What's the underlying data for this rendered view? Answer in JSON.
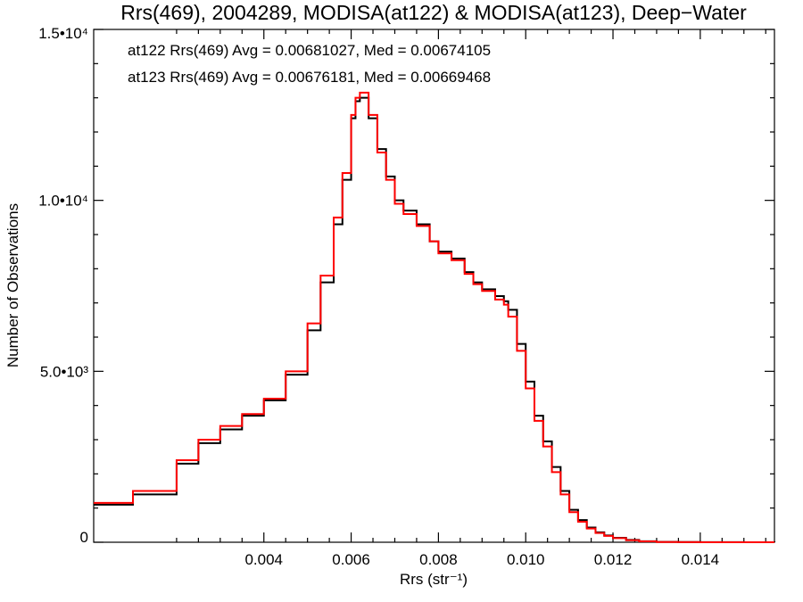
{
  "chart_data": {
    "type": "line",
    "subtype": "histogram-step",
    "title": "Rrs(469), 2004289, MODISA(at122) & MODISA(at123), Deep−Water",
    "xlabel": "Rrs (str⁻¹)",
    "ylabel": "Number of Observations",
    "xlim": [
      0.0001,
      0.0157
    ],
    "ylim": [
      0,
      15000
    ],
    "x_ticks": [
      {
        "value": 0.004,
        "label": "0.004"
      },
      {
        "value": 0.006,
        "label": "0.006"
      },
      {
        "value": 0.008,
        "label": "0.008"
      },
      {
        "value": 0.01,
        "label": "0.010"
      },
      {
        "value": 0.012,
        "label": "0.012"
      },
      {
        "value": 0.014,
        "label": "0.014"
      }
    ],
    "y_ticks": [
      {
        "value": 0,
        "label": "0"
      },
      {
        "value": 5000,
        "label": "5.0•10³"
      },
      {
        "value": 10000,
        "label": "1.0•10⁴"
      },
      {
        "value": 15000,
        "label": "1.5•10⁴"
      }
    ],
    "grid": false,
    "legend": "annotations top-left",
    "series": [
      {
        "name": "at122",
        "color": "#000000",
        "x": [
          0.0001,
          0.001,
          0.002,
          0.0025,
          0.003,
          0.0035,
          0.004,
          0.0045,
          0.005,
          0.0053,
          0.0056,
          0.0058,
          0.006,
          0.0061,
          0.0062,
          0.0064,
          0.0066,
          0.0068,
          0.007,
          0.0072,
          0.0075,
          0.0078,
          0.008,
          0.0083,
          0.0086,
          0.0088,
          0.009,
          0.0093,
          0.0095,
          0.0096,
          0.0098,
          0.01,
          0.0102,
          0.0104,
          0.0106,
          0.0108,
          0.011,
          0.0112,
          0.0114,
          0.0116,
          0.0118,
          0.012,
          0.0123,
          0.0126,
          0.013,
          0.0135,
          0.014,
          0.015,
          0.0157
        ],
        "y": [
          1100,
          1400,
          2300,
          2900,
          3300,
          3700,
          4150,
          4900,
          6200,
          7600,
          9300,
          10600,
          12400,
          12900,
          13000,
          12400,
          11500,
          10700,
          10000,
          9700,
          9300,
          8800,
          8500,
          8300,
          7900,
          7600,
          7400,
          7200,
          7050,
          6800,
          5800,
          4700,
          3700,
          2950,
          2200,
          1500,
          950,
          650,
          430,
          290,
          200,
          130,
          70,
          30,
          10,
          5,
          2,
          1,
          0
        ]
      },
      {
        "name": "at123",
        "color": "#ff0000",
        "x": [
          0.0001,
          0.001,
          0.002,
          0.0025,
          0.003,
          0.0035,
          0.004,
          0.0045,
          0.005,
          0.0053,
          0.0056,
          0.0058,
          0.006,
          0.0061,
          0.0062,
          0.0064,
          0.0066,
          0.0068,
          0.007,
          0.0072,
          0.0075,
          0.0078,
          0.008,
          0.0083,
          0.0086,
          0.0088,
          0.009,
          0.0093,
          0.0095,
          0.0096,
          0.0098,
          0.01,
          0.0102,
          0.0104,
          0.0106,
          0.0108,
          0.011,
          0.0112,
          0.0114,
          0.0116,
          0.0118,
          0.012,
          0.0123,
          0.0126,
          0.013,
          0.0135,
          0.014,
          0.015,
          0.0157
        ],
        "y": [
          1150,
          1500,
          2400,
          3000,
          3400,
          3750,
          4200,
          5000,
          6400,
          7800,
          9500,
          10800,
          12500,
          13000,
          13150,
          12500,
          11400,
          10600,
          9900,
          9600,
          9250,
          8800,
          8450,
          8250,
          7850,
          7550,
          7350,
          7100,
          6950,
          6600,
          5600,
          4500,
          3550,
          2800,
          2050,
          1400,
          880,
          600,
          400,
          270,
          185,
          120,
          60,
          25,
          8,
          4,
          1,
          0,
          0
        ]
      }
    ],
    "annotations": [
      {
        "text": "at122 Rrs(469) Avg = 0.00681027, Med = 0.00674105",
        "color": "#000000"
      },
      {
        "text": "at123 Rrs(469) Avg = 0.00676181, Med = 0.00669468",
        "color": "#ff0000"
      }
    ]
  }
}
